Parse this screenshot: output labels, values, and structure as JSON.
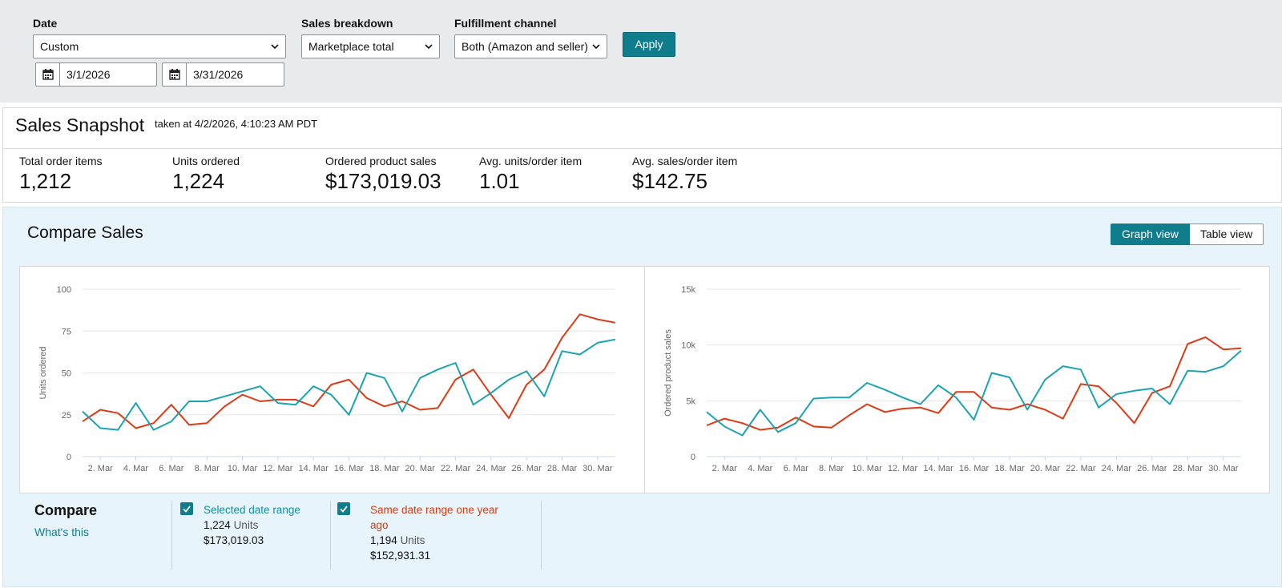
{
  "filters": {
    "date_label": "Date",
    "date_value": "Custom",
    "start_date": "3/1/2026",
    "end_date": "3/31/2026",
    "breakdown_label": "Sales breakdown",
    "breakdown_value": "Marketplace total",
    "fulfillment_label": "Fulfillment channel",
    "fulfillment_value": "Both (Amazon and seller)",
    "apply_label": "Apply"
  },
  "snapshot": {
    "title": "Sales Snapshot",
    "taken": "taken at 4/2/2026, 4:10:23 AM PDT",
    "metrics": [
      {
        "label": "Total order items",
        "value": "1,212"
      },
      {
        "label": "Units ordered",
        "value": "1,224"
      },
      {
        "label": "Ordered product sales",
        "value": "$173,019.03"
      },
      {
        "label": "Avg. units/order item",
        "value": "1.01"
      },
      {
        "label": "Avg. sales/order item",
        "value": "$142.75"
      }
    ]
  },
  "compare": {
    "title": "Compare Sales",
    "graph_view": "Graph view",
    "table_view": "Table view",
    "legend_title": "Compare",
    "whats_this": "What's this",
    "selected": {
      "name": "Selected date range",
      "units": "1,224",
      "units_word": "Units",
      "sales": "$173,019.03",
      "color": "#1ba3b1"
    },
    "previous": {
      "name": "Same date range one year ago",
      "units": "1,194",
      "units_word": "Units",
      "sales": "$152,931.31",
      "color": "#de3a14"
    }
  },
  "chart_data": [
    {
      "type": "line",
      "ylabel": "Units ordered",
      "ylim": [
        0,
        100
      ],
      "yticks": [
        "0",
        "25",
        "50",
        "75",
        "100"
      ],
      "ytick_values": [
        0,
        25,
        50,
        75,
        100
      ],
      "xtick_labels": [
        "2. Mar",
        "4. Mar",
        "6. Mar",
        "8. Mar",
        "10. Mar",
        "12. Mar",
        "14. Mar",
        "16. Mar",
        "18. Mar",
        "20. Mar",
        "22. Mar",
        "24. Mar",
        "26. Mar",
        "28. Mar",
        "30. Mar"
      ],
      "x_days": [
        1,
        2,
        3,
        4,
        5,
        6,
        7,
        8,
        9,
        10,
        11,
        12,
        13,
        14,
        15,
        16,
        17,
        18,
        19,
        20,
        21,
        22,
        23,
        24,
        25,
        26,
        27,
        28,
        29,
        30,
        31
      ],
      "series": [
        {
          "color": "#1ba3b1",
          "values": [
            27,
            17,
            16,
            32,
            16,
            21,
            33,
            33,
            36,
            39,
            42,
            32,
            31,
            42,
            37,
            25,
            50,
            47,
            27,
            47,
            52,
            56,
            31,
            38,
            46,
            51,
            36,
            63,
            61,
            68,
            70
          ]
        },
        {
          "color": "#de3a14",
          "values": [
            21,
            28,
            26,
            17,
            20,
            31,
            19,
            20,
            30,
            37,
            33,
            34,
            34,
            30,
            43,
            46,
            35,
            30,
            33,
            28,
            29,
            46,
            52,
            37,
            23,
            43,
            52,
            71,
            85,
            82,
            80
          ]
        }
      ]
    },
    {
      "type": "line",
      "ylabel": "Ordered product sales",
      "ylim": [
        0,
        15000
      ],
      "yticks": [
        "0",
        "5k",
        "10k",
        "15k"
      ],
      "ytick_values": [
        0,
        5000,
        10000,
        15000
      ],
      "xtick_labels": [
        "2. Mar",
        "4. Mar",
        "6. Mar",
        "8. Mar",
        "10. Mar",
        "12. Mar",
        "14. Mar",
        "16. Mar",
        "18. Mar",
        "20. Mar",
        "22. Mar",
        "24. Mar",
        "26. Mar",
        "28. Mar",
        "30. Mar"
      ],
      "x_days": [
        1,
        2,
        3,
        4,
        5,
        6,
        7,
        8,
        9,
        10,
        11,
        12,
        13,
        14,
        15,
        16,
        17,
        18,
        19,
        20,
        21,
        22,
        23,
        24,
        25,
        26,
        27,
        28,
        29,
        30,
        31
      ],
      "series": [
        {
          "color": "#1ba3b1",
          "values": [
            4000,
            2700,
            1900,
            4200,
            2200,
            3000,
            5200,
            5300,
            5300,
            6600,
            6000,
            5300,
            4700,
            6400,
            5300,
            3300,
            7500,
            7100,
            4200,
            6900,
            8100,
            7800,
            4400,
            5600,
            5900,
            6100,
            4700,
            7700,
            7600,
            8100,
            9500
          ]
        },
        {
          "color": "#de3a14",
          "values": [
            2800,
            3400,
            3000,
            2400,
            2600,
            3500,
            2700,
            2600,
            3700,
            4700,
            4000,
            4300,
            4400,
            3900,
            5800,
            5800,
            4400,
            4200,
            4700,
            4200,
            3400,
            6500,
            6300,
            4800,
            3000,
            5700,
            6300,
            10100,
            10700,
            9600,
            9700
          ]
        }
      ]
    }
  ]
}
